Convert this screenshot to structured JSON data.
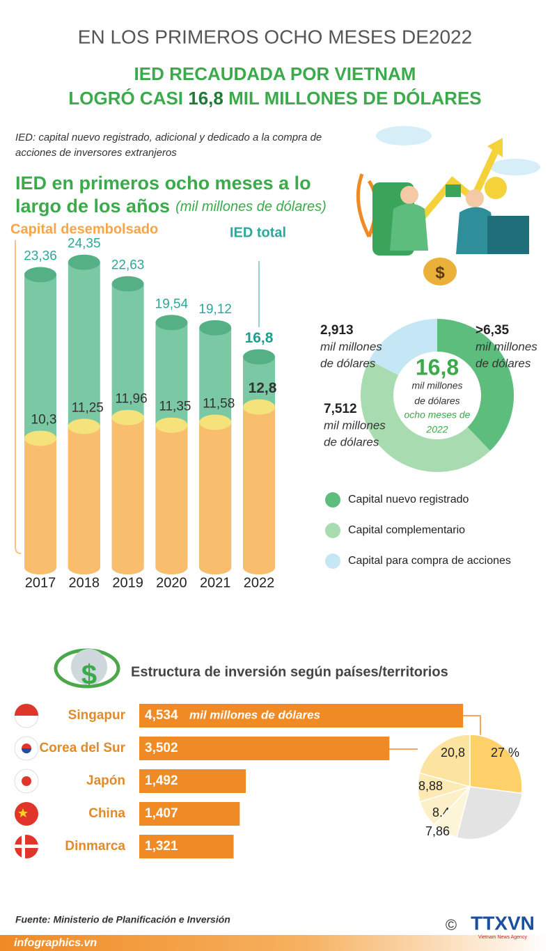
{
  "header": {
    "kicker": "EN LOS PRIMEROS OCHO MESES DE2022",
    "title_line1": "IED RECAUDADA POR VIETNAM",
    "title_line2": [
      "LOGRÓ CASI ",
      "16,8",
      " MIL MILLONES DE DÓLARES"
    ],
    "note_lines": [
      "IED: capital nuevo registrado, adicional y dedicado a la compra de",
      "acciones de inversores extranjeros"
    ]
  },
  "chart_data": [
    {
      "type": "bar",
      "title_lines": [
        "IED en primeros ocho meses a lo",
        "largo de los años"
      ],
      "subtitle": "(mil millones de dólares)",
      "categories": [
        "2017",
        "2018",
        "2019",
        "2020",
        "2021",
        "2022"
      ],
      "series": [
        {
          "name": "Capital desembolsado",
          "color": "#f9bd6e",
          "values": [
            10.3,
            11.25,
            11.96,
            11.35,
            11.58,
            12.8
          ],
          "value_labels": [
            "10,3",
            "11,25",
            "11,96",
            "11,35",
            "11,58",
            "12,8"
          ]
        },
        {
          "name": "IED total",
          "color": "#6cc39a",
          "values": [
            23.36,
            24.35,
            22.63,
            19.54,
            19.12,
            16.8
          ],
          "value_labels": [
            "23,36",
            "24,35",
            "22,63",
            "19,54",
            "19,12",
            "16,8"
          ]
        }
      ],
      "ylim": [
        0,
        25
      ]
    },
    {
      "type": "donut",
      "center_value": "16,8",
      "center_lines": [
        "mil millones",
        "de dólares"
      ],
      "center_note_lines": [
        "ocho meses de",
        "2022"
      ],
      "unit_lines": [
        "mil millones",
        "de dólares"
      ],
      "categories": [
        "Capital nuevo registrado",
        "Capital complementario",
        "Capital para compra de acciones"
      ],
      "values": [
        6.35,
        7.512,
        2.913
      ],
      "value_labels": [
        ">6,35",
        "7,512",
        "2,913"
      ],
      "colors": [
        "#5cbd7c",
        "#a8dcb0",
        "#c5e6f5"
      ]
    },
    {
      "type": "hbar",
      "title": "Estructura de inversión según países/territorios",
      "categories": [
        "Singapur",
        "Corea del Sur",
        "Japón",
        "China",
        "Dinmarca"
      ],
      "values": [
        4.534,
        3.502,
        1.492,
        1.407,
        1.321
      ],
      "value_labels": [
        "4,534",
        "3,502",
        "1,492",
        "1,407",
        "1,321"
      ],
      "unit": "mil millones de dólares",
      "color": "#f08a24",
      "xlim": [
        0,
        5
      ]
    },
    {
      "type": "pie",
      "values": [
        27,
        20.8,
        8.88,
        8.4,
        7.86
      ],
      "value_labels": [
        "27 %",
        "20,8",
        "8,88",
        "8,4",
        "7,86"
      ],
      "colors": [
        "#fdd06a",
        "#fde3a0",
        "#fde9b4",
        "#fdf0c8",
        "#fdf5d8"
      ]
    }
  ],
  "footer": {
    "source": "Fuente: Ministerio de Planificación e Inversión",
    "site": "infographics.vn",
    "copyright": "©",
    "logo": "TTXVN",
    "logo_sub": "Vietnam News Agency"
  }
}
